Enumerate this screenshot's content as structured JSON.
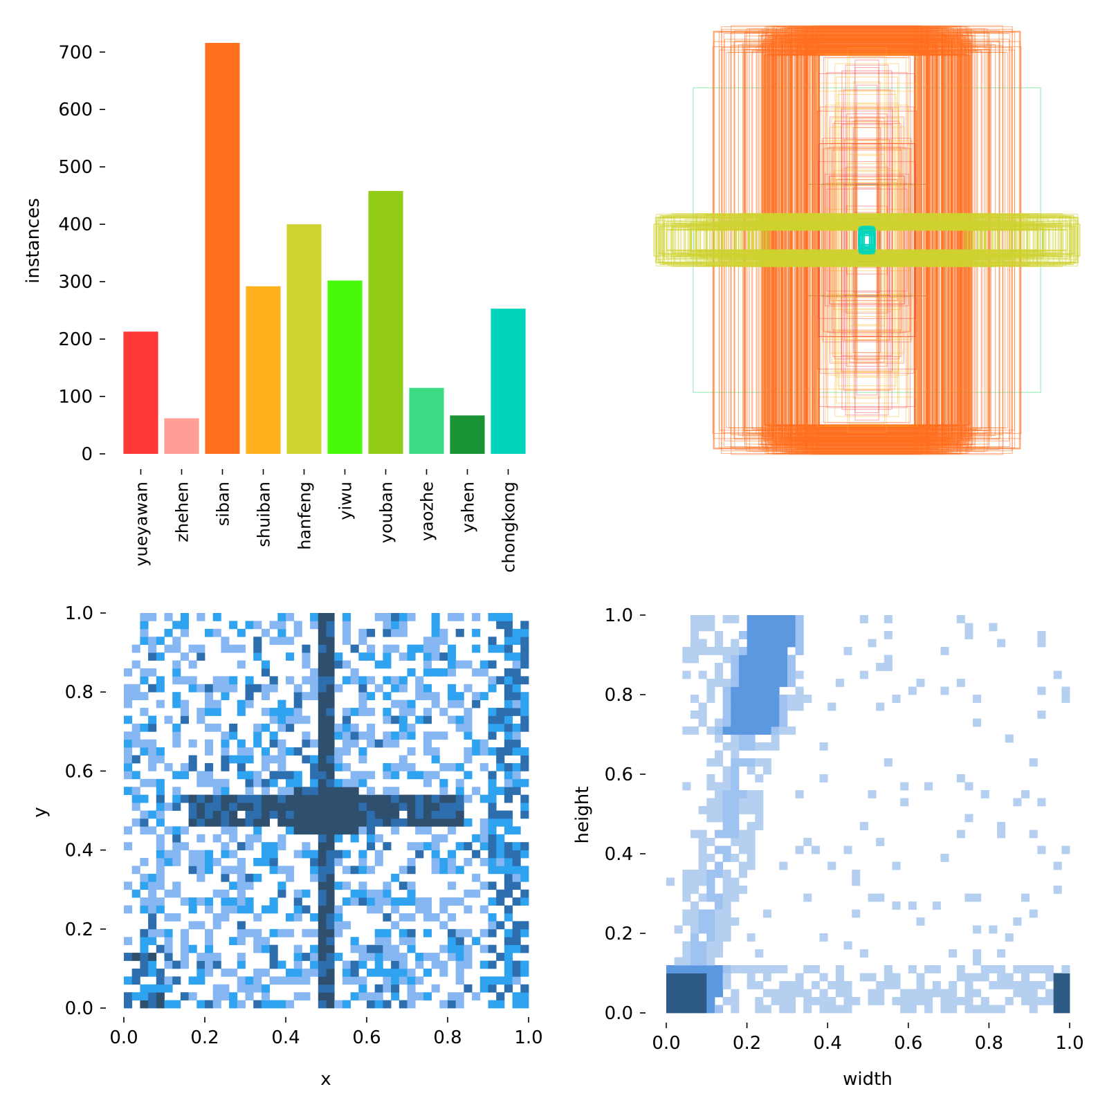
{
  "chart_data": [
    {
      "type": "bar",
      "categories": [
        "yueyawan",
        "zhehen",
        "siban",
        "shuiban",
        "hanfeng",
        "yiwu",
        "youban",
        "yaozhe",
        "yahen",
        "chongkong"
      ],
      "values": [
        213,
        62,
        716,
        292,
        400,
        302,
        458,
        115,
        67,
        253
      ],
      "colors": [
        "#ff3838",
        "#ff9d97",
        "#ff701f",
        "#ffb21d",
        "#cfd231",
        "#48f90a",
        "#92cc17",
        "#3ddb86",
        "#1a9334",
        "#00d4bb"
      ],
      "ylabel": "instances",
      "ylim": [
        0,
        720
      ],
      "yticks": [
        "0",
        "100",
        "200",
        "300",
        "400",
        "500",
        "600",
        "700"
      ]
    },
    {
      "type": "box-overlay",
      "description_colors": [
        "#ff701f",
        "#cfd231",
        "#3ddb86",
        "#ff3838"
      ],
      "groups": [
        {
          "class": "siban",
          "w_range": [
            0.22,
            0.72
          ],
          "h_range": [
            0.85,
            1.0
          ]
        },
        {
          "class": "hanfeng",
          "w_range": [
            0.4,
            1.0
          ],
          "h_range": [
            0.05,
            0.12
          ]
        },
        {
          "class": "yaozhe",
          "w_range": [
            0.02,
            0.82
          ],
          "h_range": [
            0.02,
            0.72
          ]
        }
      ]
    },
    {
      "type": "heatmap",
      "xlabel": "x",
      "ylabel": "y",
      "xlim": [
        0.0,
        1.0
      ],
      "ylim": [
        0.0,
        1.0
      ],
      "xticks": [
        "0.0",
        "0.2",
        "0.4",
        "0.6",
        "0.8",
        "1.0"
      ],
      "yticks": [
        "0.0",
        "0.2",
        "0.4",
        "0.6",
        "0.8",
        "1.0"
      ],
      "bins": 50,
      "cmap": [
        "#86b7f2",
        "#2fa3f0",
        "#2d6fae",
        "#2e4f6e"
      ],
      "hotspots": [
        {
          "x": 0.5,
          "y": 0.5,
          "label": "center"
        },
        {
          "x": 0.5,
          "y_range": [
            0.0,
            1.0
          ],
          "label": "vertical band"
        },
        {
          "y": 0.5,
          "x_range": [
            0.15,
            0.85
          ],
          "label": "horizontal band"
        }
      ]
    },
    {
      "type": "heatmap",
      "xlabel": "width",
      "ylabel": "height",
      "xlim": [
        0.0,
        1.0
      ],
      "ylim": [
        0.0,
        1.0
      ],
      "xticks": [
        "0.0",
        "0.2",
        "0.4",
        "0.6",
        "0.8",
        "1.0"
      ],
      "yticks": [
        "0.0",
        "0.2",
        "0.4",
        "0.6",
        "0.8",
        "1.0"
      ],
      "bins": 50,
      "cmap": [
        "#b4cff0",
        "#9ec3f0",
        "#5c98e0",
        "#2e5a86"
      ],
      "hotspots": [
        {
          "x": 0.04,
          "y": 0.07,
          "label": "small boxes"
        },
        {
          "x": 0.99,
          "y": 0.07,
          "label": "full width"
        },
        {
          "x_range": [
            0.2,
            0.3
          ],
          "y_range": [
            0.8,
            1.0
          ],
          "label": "tall boxes"
        }
      ]
    }
  ]
}
